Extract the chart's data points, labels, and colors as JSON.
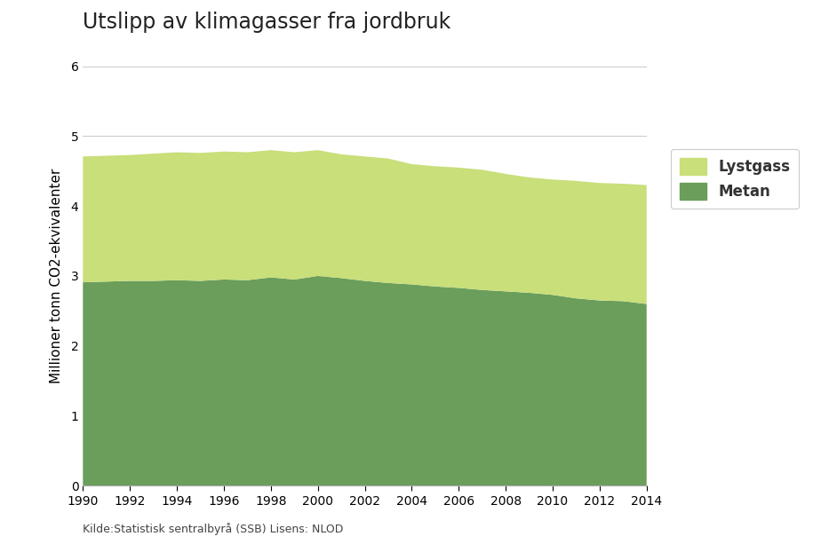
{
  "title": "Utslipp av klimagasser fra jordbruk",
  "ylabel": "Millioner tonn CO2-ekvivalenter",
  "source": "Kilde:Statistisk sentralbyrå (SSB) Lisens: NLOD",
  "years": [
    1990,
    1991,
    1992,
    1993,
    1994,
    1995,
    1996,
    1997,
    1998,
    1999,
    2000,
    2001,
    2002,
    2003,
    2004,
    2005,
    2006,
    2007,
    2008,
    2009,
    2010,
    2011,
    2012,
    2013,
    2014
  ],
  "metan": [
    2.91,
    2.92,
    2.93,
    2.93,
    2.94,
    2.93,
    2.95,
    2.94,
    2.98,
    2.95,
    3.0,
    2.97,
    2.93,
    2.9,
    2.88,
    2.85,
    2.83,
    2.8,
    2.78,
    2.76,
    2.73,
    2.68,
    2.65,
    2.64,
    2.6
  ],
  "lystgass": [
    1.8,
    1.8,
    1.8,
    1.82,
    1.83,
    1.83,
    1.83,
    1.83,
    1.82,
    1.82,
    1.8,
    1.77,
    1.78,
    1.78,
    1.72,
    1.72,
    1.72,
    1.72,
    1.68,
    1.65,
    1.65,
    1.68,
    1.68,
    1.68,
    1.7
  ],
  "metan_color": "#6a9e5a",
  "lystgass_color": "#c8df7a",
  "ylim": [
    0,
    6
  ],
  "yticks": [
    0,
    1,
    2,
    3,
    4,
    5,
    6
  ],
  "xticks": [
    1990,
    1992,
    1994,
    1996,
    1998,
    2000,
    2002,
    2004,
    2006,
    2008,
    2010,
    2012,
    2014
  ],
  "background_color": "#ffffff",
  "grid_color": "#cccccc",
  "title_fontsize": 17,
  "axis_fontsize": 11,
  "tick_fontsize": 10,
  "legend_fontsize": 12,
  "source_fontsize": 9
}
